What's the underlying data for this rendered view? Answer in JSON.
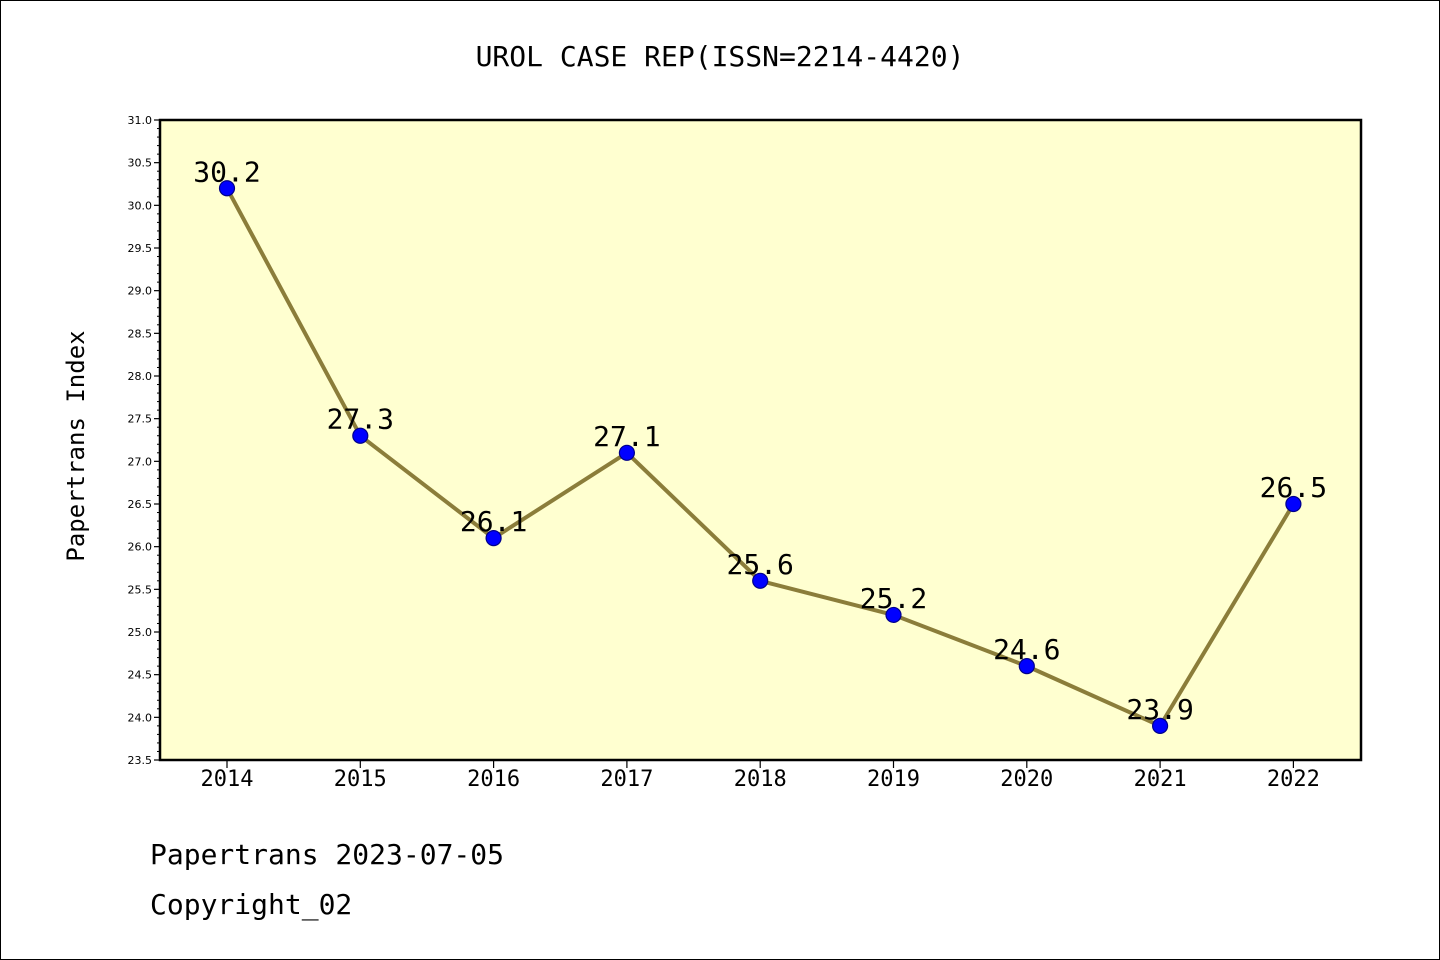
{
  "chart_data": {
    "type": "line",
    "title": "UROL CASE REP(ISSN=2214-4420)",
    "xlabel": "",
    "ylabel": "Papertrans Index",
    "categories": [
      "2014",
      "2015",
      "2016",
      "2017",
      "2018",
      "2019",
      "2020",
      "2021",
      "2022"
    ],
    "values": [
      30.2,
      27.3,
      26.1,
      27.1,
      25.6,
      25.2,
      24.6,
      23.9,
      26.5
    ],
    "data_labels": [
      "30.2",
      "27.3",
      "26.1",
      "27.1",
      "25.6",
      "25.2",
      "24.6",
      "23.9",
      "26.5"
    ],
    "ylim": [
      23.5,
      31.0
    ],
    "yticks": [
      "23.5",
      "24.0",
      "24.5",
      "25.0",
      "25.5",
      "26.0",
      "26.5",
      "27.0",
      "27.5",
      "28.0",
      "28.5",
      "29.0",
      "29.5",
      "30.0",
      "30.5",
      "31.0"
    ],
    "grid": false,
    "legend": "none",
    "colors": {
      "plot_background": "#ffffd0",
      "line": "#8b7d3a",
      "marker": "#0000ff",
      "marker_edge": "#00008b"
    }
  },
  "footer": {
    "line1": "Papertrans 2023-07-05",
    "line2": "Copyright_02"
  }
}
